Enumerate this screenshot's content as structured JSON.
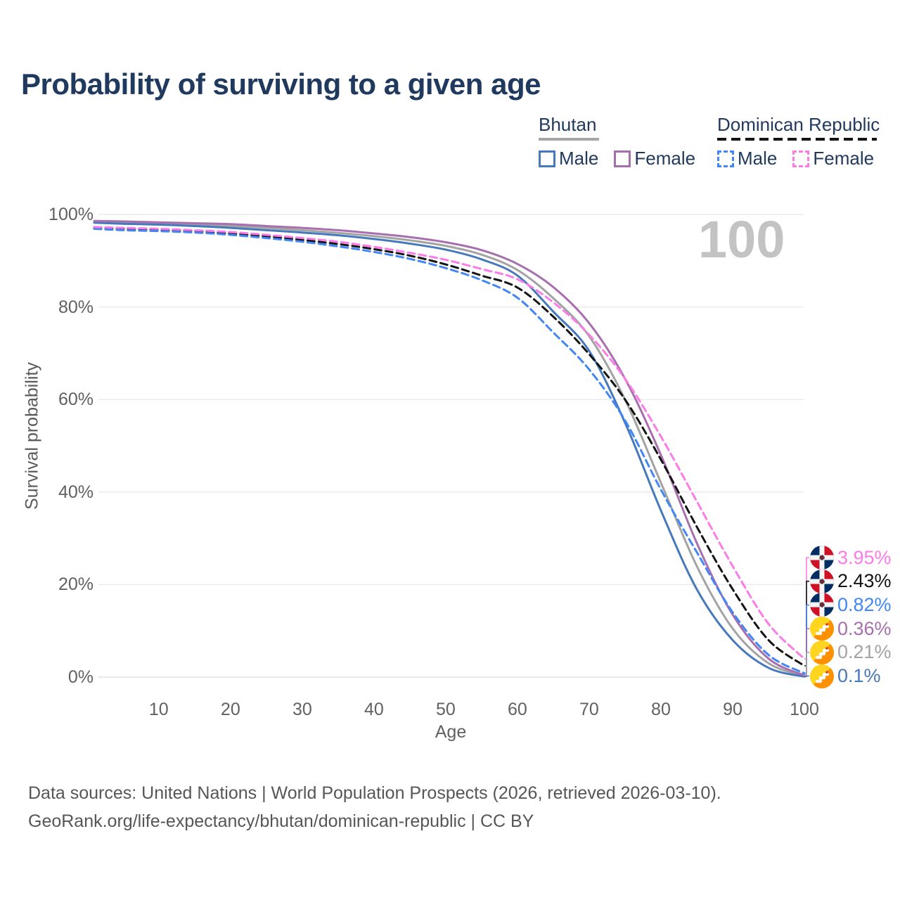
{
  "title": "Probability of surviving to a given age",
  "watermark_age": "100",
  "legend": {
    "groups": [
      {
        "country": "Bhutan",
        "style": "solid",
        "items": [
          {
            "label": "Male",
            "series": 1
          },
          {
            "label": "Female",
            "series": 2
          }
        ]
      },
      {
        "country": "Dominican Republic",
        "style": "dashed",
        "items": [
          {
            "label": "Male",
            "series": 4
          },
          {
            "label": "Female",
            "series": 5
          }
        ]
      }
    ]
  },
  "chart_data": {
    "type": "line",
    "title": "Probability of surviving to a given age",
    "xlabel": "Age",
    "ylabel": "Survival probability",
    "xlim": [
      1,
      100
    ],
    "ylim": [
      0,
      100
    ],
    "grid": true,
    "x_ticks": [
      10,
      20,
      30,
      40,
      50,
      60,
      70,
      80,
      90,
      100
    ],
    "y_ticks": [
      {
        "label": "100%",
        "value": 100
      },
      {
        "label": "80%",
        "value": 80
      },
      {
        "label": "60%",
        "value": 60
      },
      {
        "label": "40%",
        "value": 40
      },
      {
        "label": "20%",
        "value": 20
      },
      {
        "label": "0%",
        "value": 0
      }
    ],
    "x": [
      1,
      5,
      10,
      15,
      20,
      25,
      30,
      35,
      40,
      45,
      50,
      55,
      60,
      65,
      70,
      75,
      80,
      85,
      90,
      95,
      100
    ],
    "series": [
      {
        "name": "Bhutan — Total",
        "country": "Bhutan",
        "sex": "both",
        "style": "solid",
        "color": "#a3a3a3",
        "end_label": "0.21%",
        "flag": "bhutan",
        "values": [
          98.4,
          98.2,
          98.0,
          97.8,
          97.5,
          97.1,
          96.6,
          96.0,
          95.3,
          94.4,
          93.2,
          91.3,
          88.0,
          81.9,
          73.7,
          60.0,
          42.0,
          24.0,
          10.5,
          3.0,
          0.21
        ]
      },
      {
        "name": "Bhutan — Male",
        "country": "Bhutan",
        "sex": "male",
        "style": "solid",
        "color": "#4679bb",
        "end_label": "0.1%",
        "flag": "bhutan",
        "values": [
          98.2,
          98.0,
          97.8,
          97.5,
          97.1,
          96.6,
          96.1,
          95.5,
          94.7,
          93.7,
          92.4,
          90.3,
          86.8,
          79.0,
          70.5,
          55.0,
          36.0,
          19.0,
          8.0,
          2.0,
          0.1
        ]
      },
      {
        "name": "Bhutan — Female",
        "country": "Bhutan",
        "sex": "female",
        "style": "solid",
        "color": "#a86fb0",
        "end_label": "0.36%",
        "flag": "bhutan",
        "values": [
          98.6,
          98.5,
          98.3,
          98.1,
          97.9,
          97.5,
          97.1,
          96.6,
          95.9,
          95.1,
          94.0,
          92.3,
          89.3,
          84.3,
          76.5,
          64.5,
          48.0,
          29.0,
          13.5,
          4.0,
          0.36
        ]
      },
      {
        "name": "Dominican Republic — Total",
        "country": "Dominican Republic",
        "sex": "both",
        "style": "dashed",
        "color": "#141414",
        "end_label": "2.43%",
        "flag": "dominican-republic",
        "values": [
          97.1,
          96.9,
          96.7,
          96.4,
          95.9,
          95.3,
          94.5,
          93.6,
          92.5,
          91.1,
          89.2,
          86.8,
          84.2,
          77.9,
          69.8,
          60.0,
          47.0,
          32.5,
          19.0,
          8.0,
          2.43
        ]
      },
      {
        "name": "Dominican Republic — Male",
        "country": "Dominican Republic",
        "sex": "male",
        "style": "dashed",
        "color": "#4287f5",
        "end_label": "0.82%",
        "flag": "dominican-republic",
        "values": [
          96.9,
          96.6,
          96.4,
          96.1,
          95.6,
          94.9,
          94.1,
          93.1,
          91.9,
          90.4,
          88.4,
          85.8,
          82.0,
          74.5,
          66.5,
          55.5,
          40.5,
          27.0,
          14.0,
          4.8,
          0.82
        ]
      },
      {
        "name": "Dominican Republic — Female",
        "country": "Dominican Republic",
        "sex": "female",
        "style": "dashed",
        "color": "#fb7ce8",
        "end_label": "3.95%",
        "flag": "dominican-republic",
        "values": [
          97.3,
          97.1,
          96.9,
          96.6,
          96.2,
          95.6,
          94.9,
          94.1,
          93.0,
          91.7,
          90.2,
          88.2,
          86.0,
          81.0,
          74.0,
          64.5,
          52.0,
          38.0,
          24.0,
          11.5,
          3.95
        ]
      }
    ],
    "legend_position": "top-right",
    "annotations": {
      "age_counter": "100"
    }
  },
  "footer": {
    "line1": "Data sources: United Nations | World Population Prospects (2026, retrieved 2026-03-10).",
    "line2": "GeoRank.org/life-expectancy/bhutan/dominican-republic | CC BY"
  }
}
